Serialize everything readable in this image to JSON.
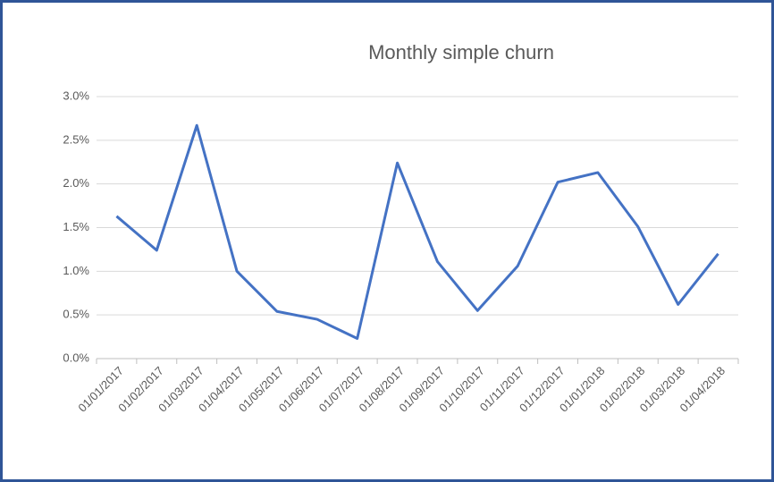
{
  "chart_data": {
    "type": "line",
    "title": "Monthly simple churn",
    "categories": [
      "01/01/2017",
      "01/02/2017",
      "01/03/2017",
      "01/04/2017",
      "01/05/2017",
      "01/06/2017",
      "01/07/2017",
      "01/08/2017",
      "01/09/2017",
      "01/10/2017",
      "01/11/2017",
      "01/12/2017",
      "01/01/2018",
      "01/02/2018",
      "01/03/2018",
      "01/04/2018"
    ],
    "series": [
      {
        "name": "Monthly simple churn",
        "color": "#4472c4",
        "values": [
          1.63,
          1.24,
          2.67,
          1.0,
          0.54,
          0.45,
          0.23,
          2.24,
          1.11,
          0.55,
          1.06,
          2.02,
          2.13,
          1.51,
          0.62,
          1.2
        ]
      }
    ],
    "ylim": [
      0,
      3
    ],
    "yticks": [
      {
        "value": 0,
        "label": "0.0%"
      },
      {
        "value": 0.5,
        "label": "0.5%"
      },
      {
        "value": 1,
        "label": "1.0%"
      },
      {
        "value": 1.5,
        "label": "1.5%"
      },
      {
        "value": 2,
        "label": "2.0%"
      },
      {
        "value": 2.5,
        "label": "2.5%"
      },
      {
        "value": 3,
        "label": "3.0%"
      }
    ],
    "grid": true,
    "legend": false
  }
}
